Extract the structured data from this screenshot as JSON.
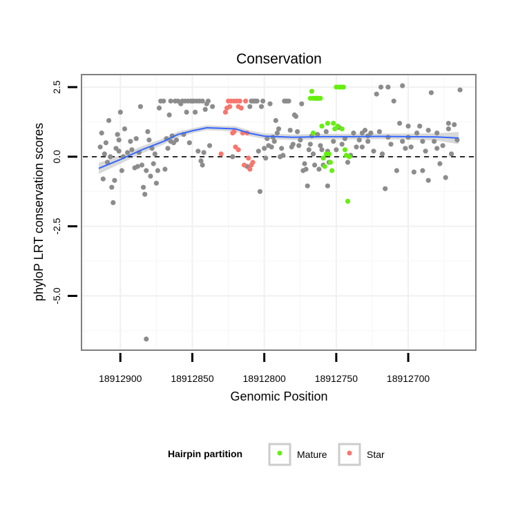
{
  "chart_data": {
    "type": "scatter",
    "title": "Conservation",
    "xlabel": "Genomic Position",
    "ylabel": "phyloP LRT conservation scores",
    "x_reversed": true,
    "xlim": [
      18912927,
      18912653
    ],
    "ylim": [
      -6.95,
      2.95
    ],
    "x_ticks": [
      18912900,
      18912850,
      18912800,
      18912750,
      18912700
    ],
    "x_tick_labels": [
      "18912900",
      "18912850",
      "18912800",
      "18912750",
      "18912700"
    ],
    "y_ticks": [
      2.5,
      0.0,
      -2.5,
      -5.0
    ],
    "y_tick_labels": [
      "2.5",
      "0.0",
      "-2.5",
      "-5.0"
    ],
    "reference_line": {
      "y": 0,
      "style": "dashed"
    },
    "legend": {
      "title": "Hairpin partition",
      "position": "bottom",
      "items": [
        {
          "label": "Mature",
          "color": "#66ee11"
        },
        {
          "label": "Star",
          "color": "#f8766d"
        }
      ]
    },
    "colors": {
      "other": "#8c8c8c",
      "mature": "#66ee11",
      "star": "#f8766d",
      "smooth": "#3366ff",
      "band": "#cccccc"
    },
    "smooth": {
      "x": [
        18912915,
        18912900,
        18912885,
        18912870,
        18912860,
        18912850,
        18912840,
        18912830,
        18912820,
        18912810,
        18912800,
        18912780,
        18912760,
        18912740,
        18912720,
        18912700,
        18912680,
        18912665
      ],
      "y": [
        -0.42,
        -0.1,
        0.25,
        0.55,
        0.8,
        0.93,
        1.04,
        1.02,
        1.0,
        0.84,
        0.74,
        0.7,
        0.72,
        0.72,
        0.73,
        0.72,
        0.71,
        0.67
      ],
      "lower": [
        -0.62,
        -0.25,
        0.12,
        0.44,
        0.7,
        0.84,
        0.95,
        0.93,
        0.9,
        0.74,
        0.64,
        0.6,
        0.62,
        0.62,
        0.63,
        0.61,
        0.58,
        0.45
      ],
      "upper": [
        -0.22,
        0.05,
        0.38,
        0.66,
        0.9,
        1.02,
        1.13,
        1.11,
        1.1,
        0.94,
        0.84,
        0.8,
        0.82,
        0.82,
        0.83,
        0.83,
        0.84,
        0.89
      ]
    },
    "series": [
      {
        "name": "Other",
        "points": [
          [
            18912914,
            0.35
          ],
          [
            18912913,
            0.85
          ],
          [
            18912912,
            -0.8
          ],
          [
            18912911,
            0.1
          ],
          [
            18912910,
            0.5
          ],
          [
            18912909,
            -0.2
          ],
          [
            18912908,
            1.3
          ],
          [
            18912907,
            0.0
          ],
          [
            18912906,
            -1.1
          ],
          [
            18912905,
            -1.65
          ],
          [
            18912904,
            -0.85
          ],
          [
            18912903,
            0.3
          ],
          [
            18912902,
            0.8
          ],
          [
            18912901,
            0.6
          ],
          [
            18912900,
            1.6
          ],
          [
            18912899,
            -0.5
          ],
          [
            18912898,
            0.0
          ],
          [
            18912897,
            1.0
          ],
          [
            18912895,
            0.15
          ],
          [
            18912893,
            0.55
          ],
          [
            18912892,
            0.25
          ],
          [
            18912890,
            -0.4
          ],
          [
            18912889,
            0.65
          ],
          [
            18912888,
            -0.35
          ],
          [
            18912887,
            0.15
          ],
          [
            18912886,
            1.8
          ],
          [
            18912885,
            -0.3
          ],
          [
            18912884,
            -1.1
          ],
          [
            18912883,
            -1.35
          ],
          [
            18912882,
            -0.5
          ],
          [
            18912881,
            0.9
          ],
          [
            18912880,
            0.6
          ],
          [
            18912879,
            -0.7
          ],
          [
            18912878,
            0.3
          ],
          [
            18912877,
            -0.25
          ],
          [
            18912876,
            0.1
          ],
          [
            18912875,
            -0.95
          ],
          [
            18912874,
            -0.5
          ],
          [
            18912873,
            1.75
          ],
          [
            18912872,
            2.0
          ],
          [
            18912870,
            2.0
          ],
          [
            18912869,
            -0.45
          ],
          [
            18912868,
            0.65
          ],
          [
            18912867,
            0.3
          ],
          [
            18912866,
            1.5
          ],
          [
            18912865,
            2.0
          ],
          [
            18912864,
            0.75
          ],
          [
            18912863,
            0.5
          ],
          [
            18912862,
            2.0
          ],
          [
            18912861,
            0.6
          ],
          [
            18912860,
            2.0
          ],
          [
            18912858,
            1.9
          ],
          [
            18912857,
            2.0
          ],
          [
            18912856,
            0.8
          ],
          [
            18912855,
            2.0
          ],
          [
            18912854,
            1.6
          ],
          [
            18912853,
            2.0
          ],
          [
            18912852,
            0.5
          ],
          [
            18912851,
            2.0
          ],
          [
            18912850,
            2.0
          ],
          [
            18912849,
            2.0
          ],
          [
            18912848,
            1.6
          ],
          [
            18912847,
            2.0
          ],
          [
            18912846,
            0.2
          ],
          [
            18912845,
            2.0
          ],
          [
            18912844,
            -0.15
          ],
          [
            18912843,
            2.0
          ],
          [
            18912842,
            0.15
          ],
          [
            18912841,
            1.7
          ],
          [
            18912840,
            1.9
          ],
          [
            18912839,
            2.0
          ],
          [
            18912838,
            0.4
          ],
          [
            18912836,
            1.8
          ],
          [
            18912786,
            2.0
          ],
          [
            18912785,
            2.0
          ],
          [
            18912784,
            2.0
          ],
          [
            18912783,
            2.0
          ],
          [
            18912812,
            -0.35
          ],
          [
            18912810,
            1.8
          ],
          [
            18912809,
            2.0
          ],
          [
            18912808,
            2.0
          ],
          [
            18912807,
            2.0
          ],
          [
            18912806,
            2.0
          ],
          [
            18912805,
            2.0
          ],
          [
            18912804,
            0.2
          ],
          [
            18912803,
            -1.25
          ],
          [
            18912802,
            1.8
          ],
          [
            18912801,
            2.0
          ],
          [
            18912800,
            0.3
          ],
          [
            18912799,
            -0.05
          ],
          [
            18912798,
            0.65
          ],
          [
            18912797,
            0.4
          ],
          [
            18912796,
            1.9
          ],
          [
            18912795,
            0.35
          ],
          [
            18912794,
            0.7
          ],
          [
            18912793,
            0.55
          ],
          [
            18912792,
            1.3
          ],
          [
            18912791,
            0.85
          ],
          [
            18912790,
            1.0
          ],
          [
            18912789,
            0.0
          ],
          [
            18912788,
            0.3
          ],
          [
            18912787,
            0.05
          ],
          [
            18912782,
            0.95
          ],
          [
            18912781,
            0.35
          ],
          [
            18912780,
            0.45
          ],
          [
            18912779,
            1.5
          ],
          [
            18912778,
            1.45
          ],
          [
            18912777,
            0.9
          ],
          [
            18912776,
            0.4
          ],
          [
            18912775,
            0.6
          ],
          [
            18912774,
            1.9
          ],
          [
            18912773,
            -0.5
          ],
          [
            18912772,
            -0.25
          ],
          [
            18912771,
            -0.45
          ],
          [
            18912770,
            -1.05
          ],
          [
            18912769,
            0.25
          ],
          [
            18912768,
            0.45
          ],
          [
            18912767,
            0.75
          ],
          [
            18912766,
            0.1
          ],
          [
            18912765,
            -0.3
          ],
          [
            18912764,
            2.1
          ],
          [
            18912763,
            0.8
          ],
          [
            18912762,
            -0.45
          ],
          [
            18912761,
            0.4
          ],
          [
            18912760,
            0.25
          ],
          [
            18912759,
            -0.3
          ],
          [
            18912757,
            0.9
          ],
          [
            18912756,
            0.2
          ],
          [
            18912755,
            -0.2
          ],
          [
            18912752,
            0.55
          ],
          [
            18912750,
            0.25
          ],
          [
            18912748,
            1.05
          ],
          [
            18912746,
            0.45
          ],
          [
            18912744,
            0.65
          ],
          [
            18912742,
            -0.2
          ],
          [
            18912740,
            0.05
          ],
          [
            18912738,
            0.85
          ],
          [
            18912736,
            0.35
          ],
          [
            18912734,
            0.6
          ],
          [
            18912732,
            0.35
          ],
          [
            18912730,
            0.95
          ],
          [
            18912728,
            0.55
          ],
          [
            18912726,
            0.85
          ],
          [
            18912724,
            0.2
          ],
          [
            18912722,
            2.25
          ],
          [
            18912720,
            0.9
          ],
          [
            18912718,
            0.1
          ],
          [
            18912716,
            -1.15
          ],
          [
            18912714,
            0.7
          ],
          [
            18912712,
            0.45
          ],
          [
            18912710,
            2.0
          ],
          [
            18912708,
            -0.5
          ],
          [
            18912706,
            1.2
          ],
          [
            18912704,
            0.55
          ],
          [
            18912702,
            0.3
          ],
          [
            18912700,
            1.1
          ],
          [
            18912698,
            0.35
          ],
          [
            18912696,
            -0.55
          ],
          [
            18912694,
            0.85
          ],
          [
            18912692,
            1.1
          ],
          [
            18912690,
            0.55
          ],
          [
            18912688,
            0.2
          ],
          [
            18912686,
            0.95
          ],
          [
            18912684,
            2.3
          ],
          [
            18912682,
            0.55
          ],
          [
            18912680,
            0.85
          ],
          [
            18912678,
            -0.25
          ],
          [
            18912676,
            0.4
          ],
          [
            18912674,
            -0.75
          ],
          [
            18912672,
            1.2
          ],
          [
            18912670,
            0.1
          ],
          [
            18912668,
            1.15
          ],
          [
            18912666,
            0.6
          ],
          [
            18912664,
            2.4
          ],
          [
            18912901,
            0.2
          ],
          [
            18912865,
            0.55
          ],
          [
            18912843,
            -0.3
          ],
          [
            18912822,
            0.0
          ],
          [
            18912719,
            2.5
          ],
          [
            18912714,
            2.5
          ],
          [
            18912704,
            2.55
          ],
          [
            18912700,
            0.7
          ],
          [
            18912690,
            -0.5
          ],
          [
            18912686,
            -0.85
          ],
          [
            18912680,
            0.3
          ],
          [
            18912672,
            1.0
          ],
          [
            18912756,
            -1.05
          ],
          [
            18912732,
            0.85
          ],
          [
            18912728,
            0.75
          ],
          [
            18912882,
            -6.55
          ]
        ]
      },
      {
        "name": "Star",
        "points": [
          [
            18912827,
            1.6
          ],
          [
            18912826,
            1.75
          ],
          [
            18912825,
            2.0
          ],
          [
            18912824,
            1.8
          ],
          [
            18912823,
            2.0
          ],
          [
            18912822,
            0.85
          ],
          [
            18912821,
            2.0
          ],
          [
            18912820,
            0.35
          ],
          [
            18912819,
            2.0
          ],
          [
            18912818,
            1.8
          ],
          [
            18912817,
            2.0
          ],
          [
            18912816,
            1.75
          ],
          [
            18912815,
            0.85
          ],
          [
            18912814,
            -0.3
          ],
          [
            18912813,
            2.0
          ],
          [
            18912812,
            0.85
          ],
          [
            18912811,
            -0.05
          ],
          [
            18912810,
            -0.45
          ],
          [
            18912809,
            -0.3
          ],
          [
            18912808,
            -0.2
          ],
          [
            18912818,
            0.25
          ],
          [
            18912830,
            0.1
          ],
          [
            18912821,
            0.9
          ]
        ]
      },
      {
        "name": "Mature",
        "points": [
          [
            18912768,
            2.1
          ],
          [
            18912767,
            2.35
          ],
          [
            18912766,
            2.1
          ],
          [
            18912765,
            2.1
          ],
          [
            18912764,
            2.1
          ],
          [
            18912763,
            2.1
          ],
          [
            18912762,
            2.1
          ],
          [
            18912761,
            2.1
          ],
          [
            18912760,
            1.1
          ],
          [
            18912759,
            -0.05
          ],
          [
            18912758,
            -0.35
          ],
          [
            18912757,
            0.1
          ],
          [
            18912756,
            1.2
          ],
          [
            18912755,
            0.1
          ],
          [
            18912754,
            -0.2
          ],
          [
            18912753,
            -0.5
          ],
          [
            18912752,
            1.2
          ],
          [
            18912751,
            1.0
          ],
          [
            18912750,
            2.5
          ],
          [
            18912749,
            1.1
          ],
          [
            18912748,
            2.5
          ],
          [
            18912747,
            2.5
          ],
          [
            18912746,
            2.5
          ],
          [
            18912745,
            2.5
          ],
          [
            18912744,
            0.25
          ],
          [
            18912743,
            0.05
          ],
          [
            18912742,
            -1.6
          ],
          [
            18912741,
            0.0
          ],
          [
            18912766,
            0.85
          ],
          [
            18912746,
            1.0
          ]
        ]
      }
    ]
  }
}
